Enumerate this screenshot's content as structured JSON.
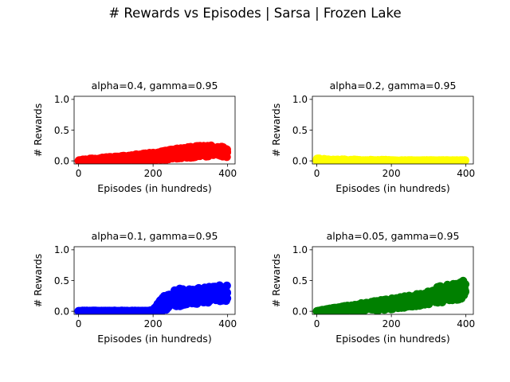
{
  "figure": {
    "title": "# Rewards vs Episodes | Sarsa | Frozen Lake"
  },
  "chart_data": [
    {
      "type": "scatter",
      "title": "alpha=0.4, gamma=0.95",
      "xlabel": "Episodes (in hundreds)",
      "ylabel": "# Rewards",
      "xlim": [
        -12,
        420
      ],
      "ylim": [
        -0.05,
        1.05
      ],
      "xticks": [
        0,
        200,
        400
      ],
      "yticks": [
        0.0,
        0.5,
        1.0
      ],
      "grid": false,
      "color": "#ff0000",
      "series": [
        {
          "x": [
            0,
            20,
            40,
            60,
            80,
            100,
            120,
            140,
            160,
            180,
            200,
            220,
            240,
            260,
            280,
            300,
            320,
            340,
            360,
            380,
            395
          ],
          "y": [
            0.0,
            0.01,
            0.02,
            0.02,
            0.03,
            0.03,
            0.04,
            0.05,
            0.05,
            0.07,
            0.08,
            0.08,
            0.1,
            0.12,
            0.12,
            0.14,
            0.15,
            0.16,
            0.17,
            0.17,
            0.14
          ],
          "lo": [
            0.0,
            0.0,
            0.0,
            0.0,
            0.0,
            0.0,
            0.0,
            0.0,
            0.0,
            0.0,
            0.0,
            0.0,
            0.02,
            0.03,
            0.03,
            0.05,
            0.06,
            0.07,
            0.08,
            0.08,
            0.06
          ],
          "hi": [
            0.01,
            0.03,
            0.04,
            0.05,
            0.06,
            0.07,
            0.08,
            0.09,
            0.11,
            0.12,
            0.14,
            0.15,
            0.17,
            0.2,
            0.21,
            0.23,
            0.24,
            0.25,
            0.26,
            0.26,
            0.2
          ]
        }
      ]
    },
    {
      "type": "scatter",
      "title": "alpha=0.2, gamma=0.95",
      "xlabel": "Episodes (in hundreds)",
      "ylabel": "# Rewards",
      "xlim": [
        -12,
        420
      ],
      "ylim": [
        -0.05,
        1.05
      ],
      "xticks": [
        0,
        200,
        400
      ],
      "yticks": [
        0.0,
        0.5,
        1.0
      ],
      "grid": false,
      "color": "#ffff00",
      "series": [
        {
          "x": [
            0,
            20,
            40,
            60,
            80,
            100,
            120,
            140,
            160,
            180,
            200,
            220,
            240,
            260,
            280,
            300,
            320,
            340,
            360,
            380,
            395
          ],
          "y": [
            0.01,
            0.01,
            0.01,
            0.01,
            0.0,
            0.0,
            0.0,
            0.0,
            0.0,
            0.0,
            0.0,
            0.0,
            0.0,
            0.0,
            0.0,
            0.0,
            0.0,
            0.0,
            0.0,
            0.0,
            0.0
          ],
          "lo": [
            0.0,
            0.0,
            0.0,
            0.0,
            0.0,
            0.0,
            0.0,
            0.0,
            0.0,
            0.0,
            0.0,
            0.0,
            0.0,
            0.0,
            0.0,
            0.0,
            0.0,
            0.0,
            0.0,
            0.0,
            0.0
          ],
          "hi": [
            0.04,
            0.03,
            0.02,
            0.03,
            0.02,
            0.02,
            0.01,
            0.02,
            0.01,
            0.02,
            0.01,
            0.01,
            0.01,
            0.01,
            0.01,
            0.01,
            0.01,
            0.01,
            0.01,
            0.01,
            0.01
          ]
        }
      ]
    },
    {
      "type": "scatter",
      "title": "alpha=0.1, gamma=0.95",
      "xlabel": "Episodes (in hundreds)",
      "ylabel": "# Rewards",
      "xlim": [
        -12,
        420
      ],
      "ylim": [
        -0.05,
        1.05
      ],
      "xticks": [
        0,
        200,
        400
      ],
      "yticks": [
        0.0,
        0.5,
        1.0
      ],
      "grid": false,
      "color": "#0000ff",
      "series": [
        {
          "x": [
            0,
            20,
            40,
            60,
            80,
            100,
            120,
            140,
            160,
            180,
            200,
            215,
            230,
            250,
            270,
            290,
            310,
            330,
            350,
            370,
            385,
            395
          ],
          "y": [
            0.0,
            0.0,
            0.0,
            0.0,
            0.0,
            0.0,
            0.0,
            0.0,
            0.0,
            0.0,
            0.01,
            0.05,
            0.12,
            0.18,
            0.22,
            0.24,
            0.26,
            0.28,
            0.29,
            0.3,
            0.32,
            0.3
          ],
          "lo": [
            0.0,
            0.0,
            0.0,
            0.0,
            0.0,
            0.0,
            0.0,
            0.0,
            0.0,
            0.0,
            0.0,
            0.0,
            0.0,
            0.05,
            0.08,
            0.1,
            0.12,
            0.13,
            0.14,
            0.15,
            0.17,
            0.16
          ],
          "hi": [
            0.01,
            0.01,
            0.01,
            0.01,
            0.01,
            0.01,
            0.01,
            0.01,
            0.01,
            0.01,
            0.02,
            0.15,
            0.25,
            0.32,
            0.38,
            0.35,
            0.38,
            0.38,
            0.4,
            0.42,
            0.46,
            0.43
          ]
        }
      ]
    },
    {
      "type": "scatter",
      "title": "alpha=0.05, gamma=0.95",
      "xlabel": "Episodes (in hundreds)",
      "ylabel": "# Rewards",
      "xlim": [
        -12,
        420
      ],
      "ylim": [
        -0.05,
        1.05
      ],
      "xticks": [
        0,
        200,
        400
      ],
      "yticks": [
        0.0,
        0.5,
        1.0
      ],
      "grid": false,
      "color": "#008000",
      "series": [
        {
          "x": [
            0,
            20,
            40,
            60,
            80,
            100,
            120,
            140,
            160,
            180,
            200,
            220,
            240,
            260,
            280,
            300,
            320,
            340,
            360,
            380,
            395
          ],
          "y": [
            0.0,
            0.01,
            0.02,
            0.03,
            0.04,
            0.05,
            0.07,
            0.08,
            0.09,
            0.11,
            0.12,
            0.14,
            0.16,
            0.18,
            0.19,
            0.21,
            0.24,
            0.26,
            0.28,
            0.3,
            0.33
          ],
          "lo": [
            0.0,
            0.0,
            0.0,
            0.0,
            0.0,
            0.0,
            0.0,
            0.01,
            0.01,
            0.02,
            0.03,
            0.05,
            0.06,
            0.08,
            0.09,
            0.11,
            0.13,
            0.15,
            0.17,
            0.19,
            0.22
          ],
          "hi": [
            0.01,
            0.03,
            0.05,
            0.07,
            0.09,
            0.1,
            0.13,
            0.15,
            0.17,
            0.19,
            0.21,
            0.23,
            0.25,
            0.27,
            0.29,
            0.33,
            0.4,
            0.42,
            0.45,
            0.47,
            0.5
          ]
        }
      ]
    }
  ]
}
